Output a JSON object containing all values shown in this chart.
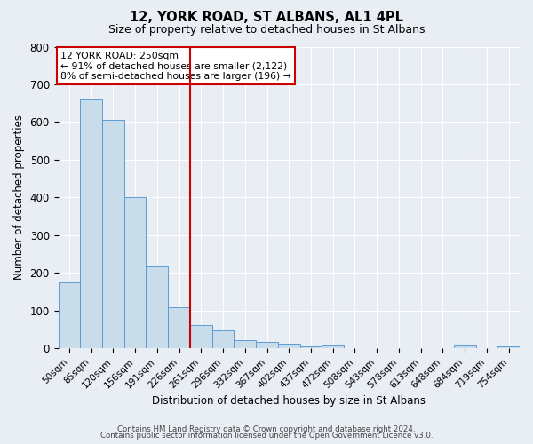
{
  "title": "12, YORK ROAD, ST ALBANS, AL1 4PL",
  "subtitle": "Size of property relative to detached houses in St Albans",
  "xlabel": "Distribution of detached houses by size in St Albans",
  "ylabel": "Number of detached properties",
  "bar_labels": [
    "50sqm",
    "85sqm",
    "120sqm",
    "156sqm",
    "191sqm",
    "226sqm",
    "261sqm",
    "296sqm",
    "332sqm",
    "367sqm",
    "402sqm",
    "437sqm",
    "472sqm",
    "508sqm",
    "543sqm",
    "578sqm",
    "613sqm",
    "648sqm",
    "684sqm",
    "719sqm",
    "754sqm"
  ],
  "bar_heights": [
    175,
    660,
    605,
    400,
    217,
    110,
    63,
    48,
    22,
    17,
    13,
    5,
    8,
    0,
    0,
    0,
    0,
    0,
    8,
    0,
    5
  ],
  "bar_color": "#c9dcea",
  "bar_edge_color": "#5b9bd5",
  "vline_x": 5.5,
  "vline_color": "#cc0000",
  "ylim": [
    0,
    800
  ],
  "yticks": [
    0,
    100,
    200,
    300,
    400,
    500,
    600,
    700,
    800
  ],
  "annotation_box": {
    "text_line1": "12 YORK ROAD: 250sqm",
    "text_line2": "← 91% of detached houses are smaller (2,122)",
    "text_line3": "8% of semi-detached houses are larger (196) →",
    "box_color": "white",
    "edge_color": "#cc0000"
  },
  "footer_line1": "Contains HM Land Registry data © Crown copyright and database right 2024.",
  "footer_line2": "Contains public sector information licensed under the Open Government Licence v3.0.",
  "background_color": "#e8eef4",
  "grid_color": "white",
  "spine_color": "#cccccc"
}
